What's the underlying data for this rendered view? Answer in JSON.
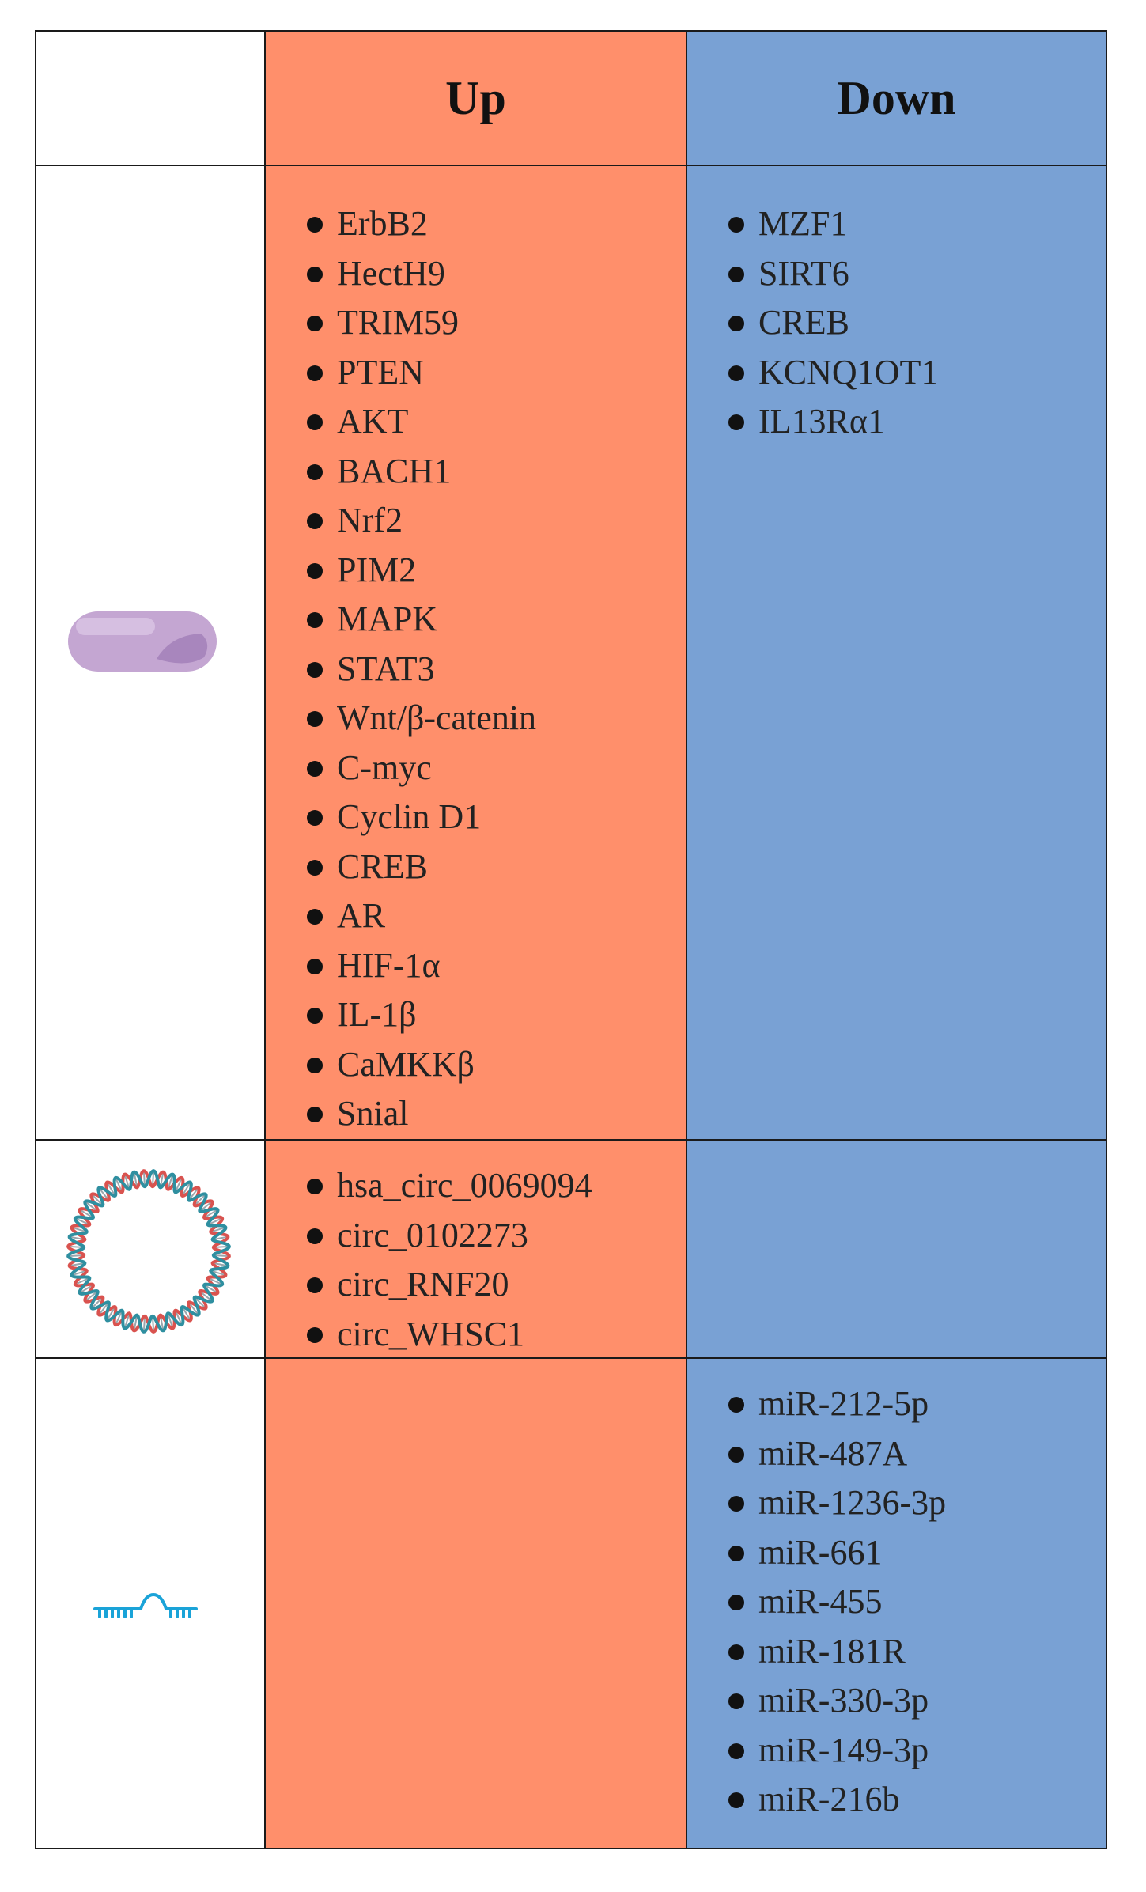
{
  "header": {
    "corner": "",
    "up": "Up",
    "down": "Down"
  },
  "rows": [
    {
      "icon": "protein-pill-icon",
      "up": [
        "ErbB2",
        "HectH9",
        "TRIM59",
        "PTEN",
        "AKT",
        "BACH1",
        "Nrf2",
        "PIM2",
        "MAPK",
        "STAT3",
        "Wnt/β-catenin",
        "C-myc",
        "Cyclin D1",
        "CREB",
        "AR",
        "HIF-1α",
        "IL-1β",
        "CaMKKβ",
        "Snial"
      ],
      "down": [
        "MZF1",
        "SIRT6",
        "CREB",
        "KCNQ1OT1",
        "IL13Rα1"
      ]
    },
    {
      "icon": "circular-rna-icon",
      "up": [
        "hsa_circ_0069094",
        "circ_0102273",
        "circ_RNF20",
        "circ_WHSC1"
      ],
      "down": []
    },
    {
      "icon": "microrna-hairpin-icon",
      "up": [],
      "down": [
        "miR-212-5p",
        "miR-487A",
        "miR-1236-3p",
        "miR-661",
        "miR-455",
        "miR-181R",
        "miR-330-3p",
        "miR-149-3p",
        "miR-216b"
      ]
    }
  ],
  "colors": {
    "up_column": "#ff8f6b",
    "down_column": "#79a1d4",
    "protein_icon": "#c4a6d2",
    "circrna_red": "#d9534f",
    "circrna_teal": "#2f8fa0",
    "mirna_icon": "#1aa3d8"
  }
}
